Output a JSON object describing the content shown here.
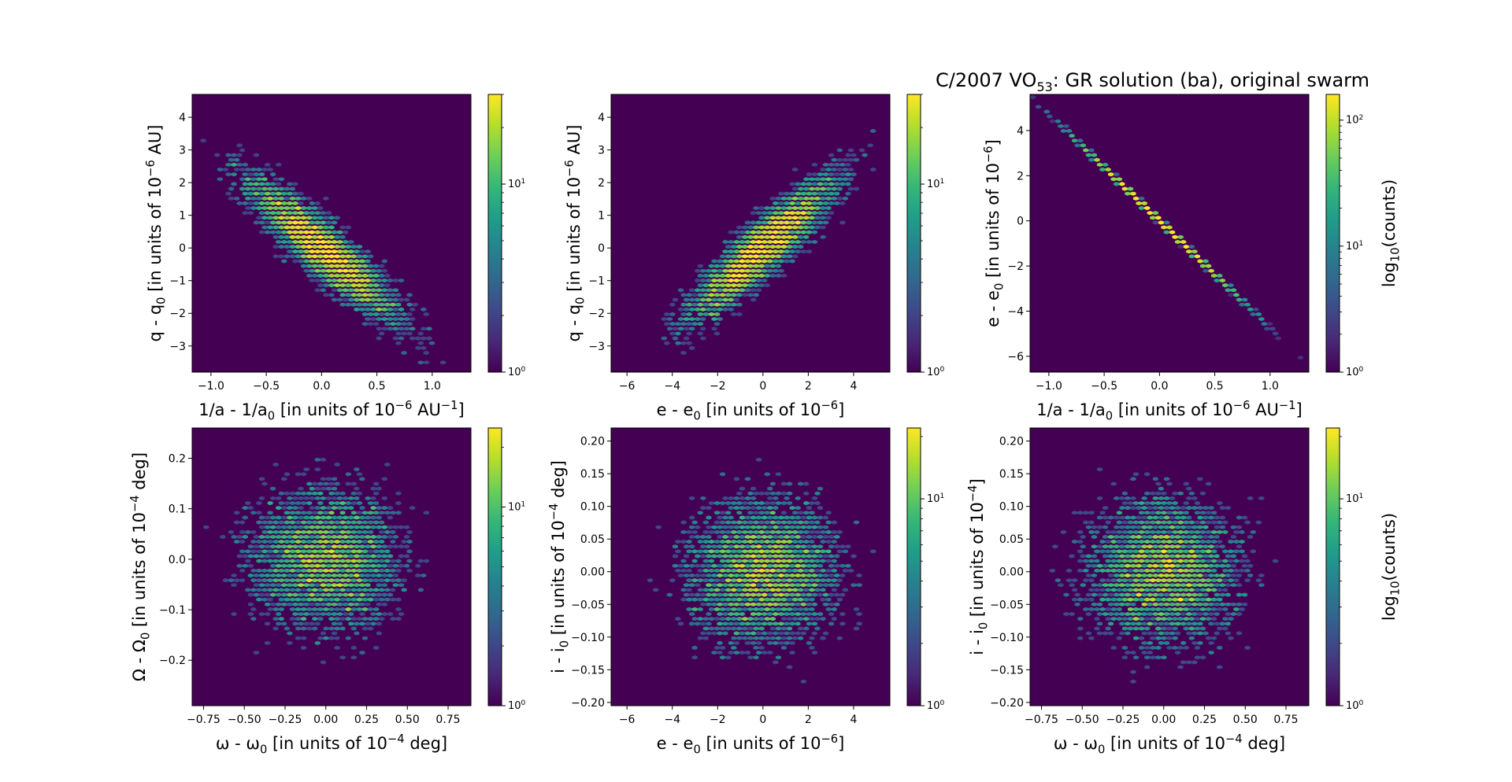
{
  "figure": {
    "title_prefix": "C/2007 VO",
    "title_sub": "53",
    "title_suffix": ": GR solution (ba), original swarm"
  },
  "colors": {
    "viridis": [
      "#440154",
      "#482878",
      "#3e4989",
      "#31688e",
      "#26828e",
      "#1f9e89",
      "#35b779",
      "#6ece58",
      "#b5de2b",
      "#fde725"
    ]
  },
  "chart_data": [
    {
      "type": "heatmap",
      "subtype": "hexbin",
      "panel": "top-left",
      "x_label": {
        "parts": [
          [
            "1/a - 1/a",
            "n"
          ],
          [
            "0",
            "sub"
          ],
          [
            " [in units of 10",
            "n"
          ],
          [
            "−6",
            "sup"
          ],
          [
            " AU",
            "n"
          ],
          [
            "−1",
            "sup"
          ],
          [
            "]",
            "n"
          ]
        ]
      },
      "y_label": {
        "parts": [
          [
            "q - q",
            "n"
          ],
          [
            "0",
            "sub"
          ],
          [
            " [in units of 10",
            "n"
          ],
          [
            "−6",
            "sup"
          ],
          [
            " AU]",
            "n"
          ]
        ]
      },
      "xlim": [
        -1.17,
        1.35
      ],
      "ylim": [
        -3.8,
        4.7
      ],
      "xticks": [
        -1.0,
        -0.5,
        0.0,
        0.5,
        1.0
      ],
      "xtick_labels": [
        "−1.0",
        "−0.5",
        "0.0",
        "0.5",
        "1.0"
      ],
      "yticks": [
        -3,
        -2,
        -1,
        0,
        1,
        2,
        3,
        4
      ],
      "ytick_labels": [
        "−3",
        "−2",
        "−1",
        "0",
        "1",
        "2",
        "3",
        "4"
      ],
      "distribution": {
        "mean": [
          0.0,
          0.0
        ],
        "sigma": [
          0.37,
          1.18
        ],
        "correlation": -0.9,
        "n_points": 5000,
        "gridsize": 50
      },
      "colorbar": {
        "scale": "log",
        "min": 1,
        "max": 30,
        "tick_labels": [
          [
            "10",
            "0"
          ],
          [
            "10",
            "1"
          ]
        ],
        "label": null
      }
    },
    {
      "type": "heatmap",
      "subtype": "hexbin",
      "panel": "top-middle",
      "x_label": {
        "parts": [
          [
            "e - e",
            "n"
          ],
          [
            "0",
            "sub"
          ],
          [
            " [in units of 10",
            "n"
          ],
          [
            "−6",
            "sup"
          ],
          [
            "]",
            "n"
          ]
        ]
      },
      "y_label": {
        "parts": [
          [
            "q - q",
            "n"
          ],
          [
            "0",
            "sub"
          ],
          [
            " [in units of 10",
            "n"
          ],
          [
            "−6",
            "sup"
          ],
          [
            " AU]",
            "n"
          ]
        ]
      },
      "xlim": [
        -6.7,
        5.6
      ],
      "ylim": [
        -3.8,
        4.7
      ],
      "xticks": [
        -6,
        -4,
        -2,
        0,
        2,
        4
      ],
      "xtick_labels": [
        "−6",
        "−4",
        "−2",
        "0",
        "2",
        "4"
      ],
      "yticks": [
        -3,
        -2,
        -1,
        0,
        1,
        2,
        3,
        4
      ],
      "ytick_labels": [
        "−3",
        "−2",
        "−1",
        "0",
        "1",
        "2",
        "3",
        "4"
      ],
      "distribution": {
        "mean": [
          0.0,
          0.0
        ],
        "sigma": [
          1.75,
          1.18
        ],
        "correlation": 0.9,
        "n_points": 5000,
        "gridsize": 50
      },
      "colorbar": {
        "scale": "log",
        "min": 1,
        "max": 30,
        "tick_labels": [
          [
            "10",
            "0"
          ],
          [
            "10",
            "1"
          ]
        ],
        "label": null
      }
    },
    {
      "type": "heatmap",
      "subtype": "hexbin",
      "panel": "top-right",
      "x_label": {
        "parts": [
          [
            "1/a - 1/a",
            "n"
          ],
          [
            "0",
            "sub"
          ],
          [
            " [in units of 10",
            "n"
          ],
          [
            "−6",
            "sup"
          ],
          [
            " AU",
            "n"
          ],
          [
            "−1",
            "sup"
          ],
          [
            "]",
            "n"
          ]
        ]
      },
      "y_label": {
        "parts": [
          [
            "e - e",
            "n"
          ],
          [
            "0",
            "sub"
          ],
          [
            " [in units of 10",
            "n"
          ],
          [
            "−6",
            "sup"
          ],
          [
            "]",
            "n"
          ]
        ]
      },
      "xlim": [
        -1.17,
        1.35
      ],
      "ylim": [
        -6.7,
        5.6
      ],
      "xticks": [
        -1.0,
        -0.5,
        0.0,
        0.5,
        1.0
      ],
      "xtick_labels": [
        "−1.0",
        "−0.5",
        "0.0",
        "0.5",
        "1.0"
      ],
      "yticks": [
        -6,
        -4,
        -2,
        0,
        2,
        4
      ],
      "ytick_labels": [
        "−6",
        "−4",
        "−2",
        "0",
        "2",
        "4"
      ],
      "distribution": {
        "mean": [
          0.0,
          0.0
        ],
        "sigma": [
          0.37,
          1.75
        ],
        "correlation": -0.9999,
        "n_points": 5000,
        "gridsize": 50
      },
      "colorbar": {
        "scale": "log",
        "min": 1,
        "max": 160,
        "tick_labels": [
          [
            "10",
            "0"
          ],
          [
            "10",
            "1"
          ],
          [
            "10",
            "2"
          ]
        ],
        "label": {
          "parts": [
            [
              "log",
              "n"
            ],
            [
              "10",
              "sub"
            ],
            [
              "(counts)",
              "n"
            ]
          ]
        }
      }
    },
    {
      "type": "heatmap",
      "subtype": "hexbin",
      "panel": "bottom-left",
      "x_label": {
        "parts": [
          [
            "ω - ω",
            "n"
          ],
          [
            "0",
            "sub"
          ],
          [
            " [in units of 10",
            "n"
          ],
          [
            "−4",
            "sup"
          ],
          [
            " deg]",
            "n"
          ]
        ]
      },
      "y_label": {
        "parts": [
          [
            "Ω - Ω",
            "n"
          ],
          [
            "0",
            "sub"
          ],
          [
            " [in units of 10",
            "n"
          ],
          [
            "−4",
            "sup"
          ],
          [
            " deg]",
            "n"
          ]
        ]
      },
      "xlim": [
        -0.82,
        0.89
      ],
      "ylim": [
        -0.29,
        0.26
      ],
      "xticks": [
        -0.75,
        -0.5,
        -0.25,
        0.0,
        0.25,
        0.5,
        0.75
      ],
      "xtick_labels": [
        "−0.75",
        "−0.50",
        "−0.25",
        "0.00",
        "0.25",
        "0.50",
        "0.75"
      ],
      "yticks": [
        -0.2,
        -0.1,
        0.0,
        0.1,
        0.2
      ],
      "ytick_labels": [
        "−0.2",
        "−0.1",
        "0.0",
        "0.1",
        "0.2"
      ],
      "distribution": {
        "mean": [
          0.0,
          0.0
        ],
        "sigma": [
          0.25,
          0.075
        ],
        "correlation": 0.0,
        "n_points": 5000,
        "gridsize": 50
      },
      "colorbar": {
        "scale": "log",
        "min": 1,
        "max": 25,
        "tick_labels": [
          [
            "10",
            "0"
          ],
          [
            "10",
            "1"
          ]
        ],
        "label": null
      }
    },
    {
      "type": "heatmap",
      "subtype": "hexbin",
      "panel": "bottom-middle",
      "x_label": {
        "parts": [
          [
            "e - e",
            "n"
          ],
          [
            "0",
            "sub"
          ],
          [
            " [in units of 10",
            "n"
          ],
          [
            "−6",
            "sup"
          ],
          [
            "]",
            "n"
          ]
        ]
      },
      "y_label": {
        "parts": [
          [
            "i - i",
            "n"
          ],
          [
            "0",
            "sub"
          ],
          [
            " [in units of 10",
            "n"
          ],
          [
            "−4",
            "sup"
          ],
          [
            " deg]",
            "n"
          ]
        ]
      },
      "xlim": [
        -6.7,
        5.6
      ],
      "ylim": [
        -0.205,
        0.22
      ],
      "xticks": [
        -6,
        -4,
        -2,
        0,
        2,
        4
      ],
      "xtick_labels": [
        "−6",
        "−4",
        "−2",
        "0",
        "2",
        "4"
      ],
      "yticks": [
        -0.2,
        -0.15,
        -0.1,
        -0.05,
        0.0,
        0.05,
        0.1,
        0.15,
        0.2
      ],
      "ytick_labels": [
        "−0.20",
        "−0.15",
        "−0.10",
        "−0.05",
        "0.00",
        "0.05",
        "0.10",
        "0.15",
        "0.20"
      ],
      "distribution": {
        "mean": [
          0.0,
          0.0
        ],
        "sigma": [
          1.75,
          0.06
        ],
        "correlation": 0.0,
        "n_points": 5000,
        "gridsize": 50
      },
      "colorbar": {
        "scale": "log",
        "min": 1,
        "max": 22,
        "tick_labels": [
          [
            "10",
            "0"
          ],
          [
            "10",
            "1"
          ]
        ],
        "label": null
      }
    },
    {
      "type": "heatmap",
      "subtype": "hexbin",
      "panel": "bottom-right",
      "x_label": {
        "parts": [
          [
            "ω - ω",
            "n"
          ],
          [
            "0",
            "sub"
          ],
          [
            " [in units of 10",
            "n"
          ],
          [
            "−4",
            "sup"
          ],
          [
            " deg]",
            "n"
          ]
        ]
      },
      "y_label": {
        "parts": [
          [
            "i - i",
            "n"
          ],
          [
            "0",
            "sub"
          ],
          [
            " [in units of 10",
            "n"
          ],
          [
            "−4",
            "sup"
          ],
          [
            "]",
            "n"
          ]
        ]
      },
      "xlim": [
        -0.82,
        0.89
      ],
      "ylim": [
        -0.205,
        0.22
      ],
      "xticks": [
        -0.75,
        -0.5,
        -0.25,
        0.0,
        0.25,
        0.5,
        0.75
      ],
      "xtick_labels": [
        "−0.75",
        "−0.50",
        "−0.25",
        "0.00",
        "0.25",
        "0.50",
        "0.75"
      ],
      "yticks": [
        -0.2,
        -0.15,
        -0.1,
        -0.05,
        0.0,
        0.05,
        0.1,
        0.15,
        0.2
      ],
      "ytick_labels": [
        "−0.20",
        "−0.15",
        "−0.10",
        "−0.05",
        "0.00",
        "0.05",
        "0.10",
        "0.15",
        "0.20"
      ],
      "distribution": {
        "mean": [
          0.0,
          0.0
        ],
        "sigma": [
          0.25,
          0.06
        ],
        "correlation": 0.0,
        "n_points": 5000,
        "gridsize": 50
      },
      "colorbar": {
        "scale": "log",
        "min": 1,
        "max": 22,
        "tick_labels": [
          [
            "10",
            "0"
          ],
          [
            "10",
            "1"
          ]
        ],
        "label": {
          "parts": [
            [
              "log",
              "n"
            ],
            [
              "10",
              "sub"
            ],
            [
              "(counts)",
              "n"
            ]
          ]
        }
      }
    }
  ]
}
